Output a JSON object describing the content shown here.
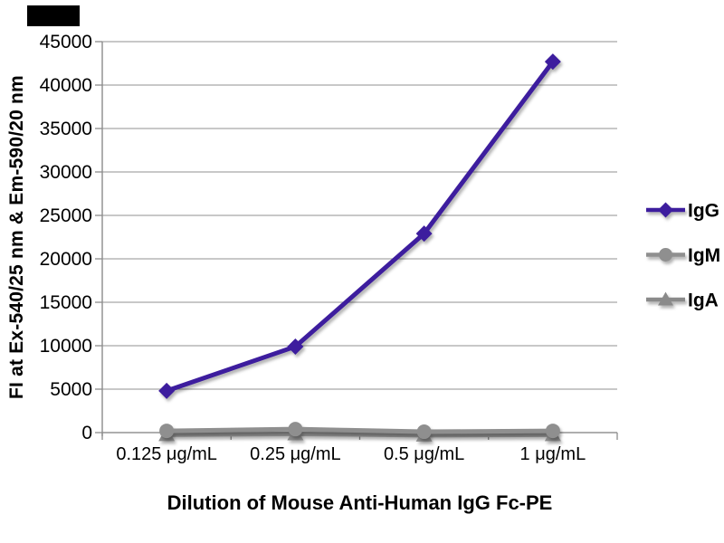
{
  "chart_data": {
    "type": "line",
    "title": "",
    "xlabel": "Dilution of Mouse Anti-Human IgG Fc-PE",
    "ylabel": "FI at Ex-540/25 nm & Em-590/20 nm",
    "categories": [
      "0.125 μg/mL",
      "0.25 μg/mL",
      "0.5 μg/mL",
      "1 μg/mL"
    ],
    "y_axis": {
      "min": 0,
      "max": 45000,
      "step": 5000,
      "tick_labels": [
        "0",
        "5000",
        "10000",
        "15000",
        "20000",
        "25000",
        "30000",
        "35000",
        "40000",
        "45000"
      ]
    },
    "grid": "horizontal-on",
    "legend_position": "right",
    "series": [
      {
        "name": "IgG",
        "marker": "diamond",
        "color": "#3d1d9e",
        "values": [
          4800,
          9900,
          22900,
          42700
        ]
      },
      {
        "name": "IgM",
        "marker": "circle",
        "color": "#8f8f8f",
        "values": [
          200,
          400,
          100,
          200
        ]
      },
      {
        "name": "IgA",
        "marker": "triangle",
        "color": "#8a8a8a",
        "values": [
          -250,
          -150,
          -300,
          -250
        ]
      }
    ]
  },
  "colors": {
    "background": "#ffffff",
    "gridline": "#a6a6a6",
    "axis": "#8c8c8c",
    "text": "#000000",
    "watermark_block": "#000000"
  }
}
